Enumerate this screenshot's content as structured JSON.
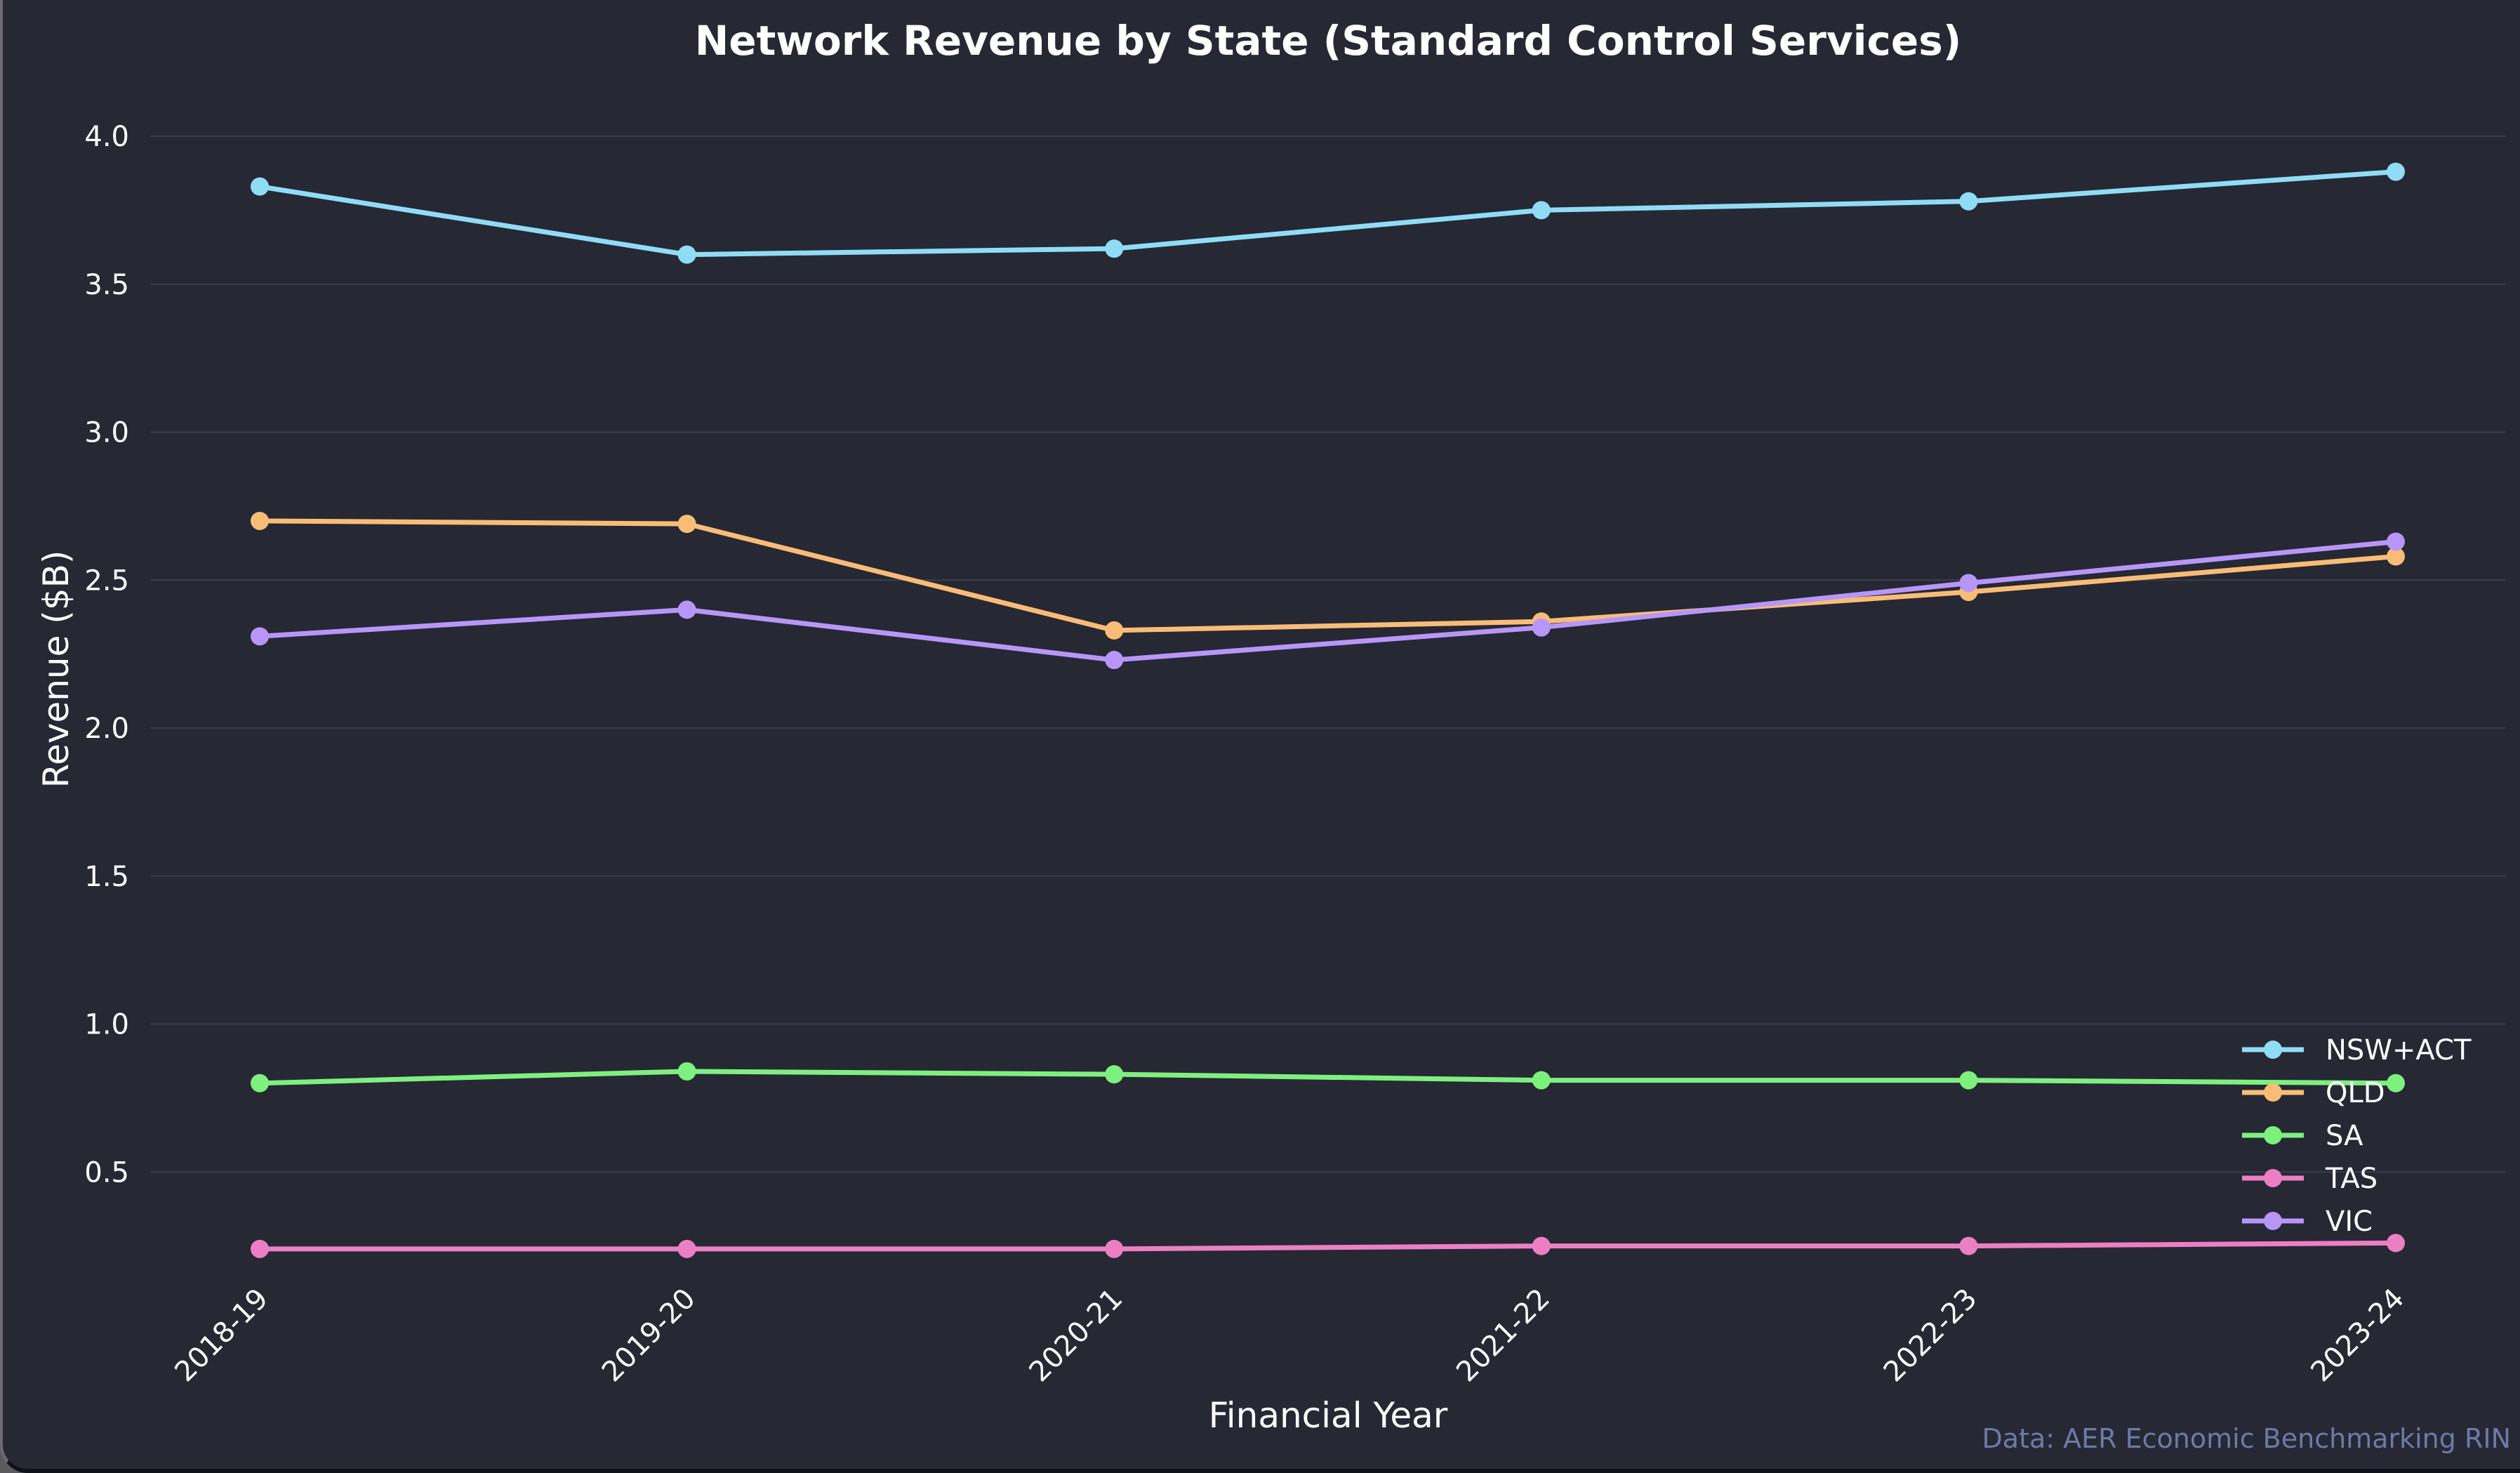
{
  "chart_data": {
    "type": "line",
    "title": "Network Revenue by State (Standard Control Services)",
    "xlabel": "Financial Year",
    "ylabel": "Revenue ($B)",
    "categories": [
      "2018-19",
      "2019-20",
      "2020-21",
      "2021-22",
      "2022-23",
      "2023-24"
    ],
    "ylim": [
      0,
      4.12
    ],
    "yticks": [
      "0.5",
      "1.0",
      "1.5",
      "2.0",
      "2.5",
      "3.0",
      "3.5",
      "4.0"
    ],
    "grid": true,
    "legend_position": "bottom-right",
    "series": [
      {
        "name": "NSW+ACT",
        "color": "#8fdcf5",
        "values": [
          3.83,
          3.6,
          3.62,
          3.75,
          3.78,
          3.88
        ]
      },
      {
        "name": "QLD",
        "color": "#f9bc76",
        "values": [
          2.7,
          2.69,
          2.33,
          2.36,
          2.46,
          2.58
        ]
      },
      {
        "name": "SA",
        "color": "#7ef07e",
        "values": [
          0.8,
          0.84,
          0.83,
          0.81,
          0.81,
          0.8
        ]
      },
      {
        "name": "TAS",
        "color": "#ec7fc4",
        "values": [
          0.24,
          0.24,
          0.24,
          0.25,
          0.25,
          0.26
        ]
      },
      {
        "name": "VIC",
        "color": "#b896f7",
        "values": [
          2.31,
          2.4,
          2.23,
          2.34,
          2.49,
          2.63
        ]
      }
    ]
  },
  "credit": "Data: AER Economic Benchmarking RIN"
}
